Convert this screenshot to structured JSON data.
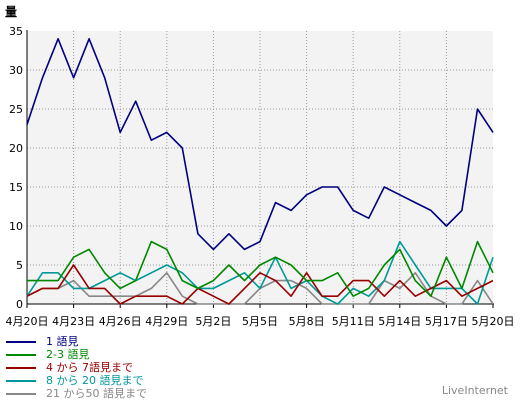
{
  "brand": "LiveInternet",
  "chart_data": {
    "type": "line",
    "ylabel": "量",
    "ylim": [
      0,
      35
    ],
    "yticks": [
      0,
      5,
      10,
      15,
      20,
      25,
      30,
      35
    ],
    "grid": true,
    "x": [
      "4月20日",
      "4月21日",
      "4月22日",
      "4月23日",
      "4月24日",
      "4月25日",
      "4月26日",
      "4月27日",
      "4月28日",
      "4月29日",
      "4月30日",
      "5月1日",
      "5月2日",
      "5月3日",
      "5月4日",
      "5月5日",
      "5月6日",
      "5月7日",
      "5月8日",
      "5月9日",
      "5月10日",
      "5月11日",
      "5月12日",
      "5月13日",
      "5月14日",
      "5月15日",
      "5月16日",
      "5月17日",
      "5月18日",
      "5月19日",
      "5月20日"
    ],
    "xtick_labels": [
      "4月20日",
      "4月23日",
      "4月26日",
      "4月29日",
      "5月2日",
      "5月5日",
      "5月8日",
      "5月11日",
      "5月14日",
      "5月17日",
      "5月20日"
    ],
    "legend_position": "bottom-left",
    "series": [
      {
        "name": "1 語見",
        "color": "#000080",
        "values": [
          23,
          29,
          34,
          29,
          34,
          29,
          22,
          26,
          21,
          22,
          20,
          9,
          7,
          9,
          7,
          8,
          13,
          12,
          14,
          15,
          15,
          12,
          11,
          15,
          14,
          13,
          12,
          10,
          12,
          25,
          22
        ]
      },
      {
        "name": "2-3 語見",
        "color": "#008800",
        "values": [
          3,
          3,
          3,
          6,
          7,
          4,
          2,
          3,
          8,
          7,
          3,
          2,
          3,
          5,
          3,
          5,
          6,
          5,
          3,
          3,
          4,
          1,
          2,
          5,
          7,
          3,
          1,
          6,
          2,
          8,
          4
        ]
      },
      {
        "name": "4 から 7語見まで",
        "color": "#990000",
        "values": [
          1,
          2,
          2,
          5,
          2,
          2,
          0,
          1,
          1,
          1,
          0,
          2,
          1,
          0,
          2,
          4,
          3,
          1,
          4,
          1,
          1,
          3,
          3,
          1,
          3,
          1,
          2,
          3,
          1,
          2,
          3
        ]
      },
      {
        "name": "8 から 20 語見まで",
        "color": "#009999",
        "values": [
          1,
          4,
          4,
          2,
          2,
          3,
          4,
          3,
          4,
          5,
          4,
          2,
          2,
          3,
          4,
          2,
          6,
          2,
          3,
          1,
          0,
          2,
          1,
          3,
          8,
          5,
          2,
          2,
          2,
          0,
          6
        ]
      },
      {
        "name": "21 から50 語見まで",
        "color": "#888888",
        "values": [
          1,
          2,
          2,
          3,
          1,
          1,
          1,
          1,
          2,
          4,
          1,
          0,
          0,
          0,
          0,
          2,
          3,
          3,
          2,
          0,
          0,
          0,
          0,
          3,
          2,
          4,
          1,
          0,
          0,
          3,
          0
        ]
      }
    ]
  }
}
